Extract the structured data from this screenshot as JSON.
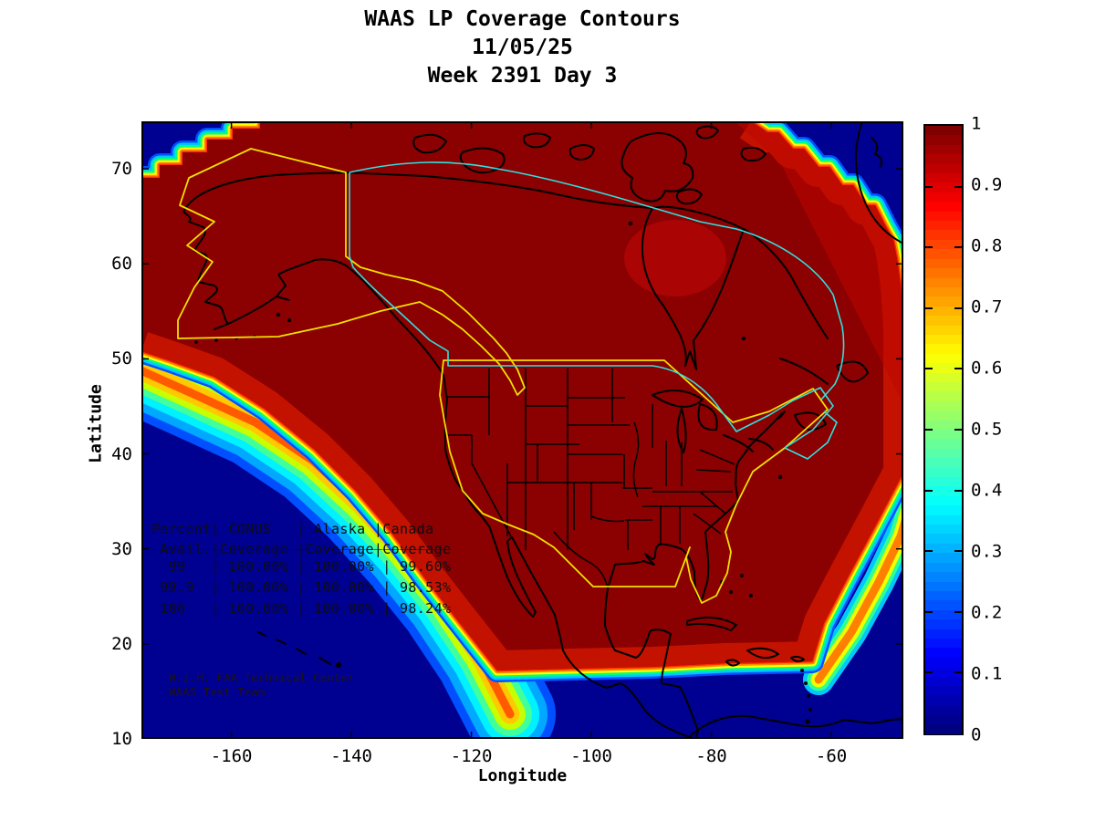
{
  "title": {
    "line1": "WAAS LP Coverage Contours",
    "line2": "11/05/25",
    "line3": "Week 2391 Day 3"
  },
  "axes": {
    "xlabel": "Longitude",
    "ylabel": "Latitude",
    "x_tick_labels": [
      "-160",
      "-140",
      "-120",
      "-100",
      "-80",
      "-60"
    ],
    "y_tick_labels": [
      "70",
      "60",
      "50",
      "40",
      "30",
      "20",
      "10"
    ]
  },
  "colorbar": {
    "tick_labels": [
      "1",
      "0.9",
      "0.8",
      "0.7",
      "0.6",
      "0.5",
      "0.4",
      "0.3",
      "0.2",
      "0.1",
      "0"
    ]
  },
  "stats_table": {
    "lines": [
      "Percent| CONUS   | Alaska |Canada",
      " Avail.|Coverage |Coverage|Coverage",
      "___________________________________",
      "  99   | 100.00% | 100.00% | 99.60%",
      " 99.9  | 100.00% | 100.00% | 98.53%",
      " 100   | 100.00% | 100.00% | 98.24%"
    ]
  },
  "credit": {
    "line1": "W.J.H. FAA Technical Center",
    "line2": "WAAS Test Team"
  },
  "colors": {
    "ocean_blue": "#000091",
    "coverage_dark_red": "#8B0000",
    "coverage_bright_red": "#C41200",
    "conus_alaska_boundary_yellow": "#F0E000",
    "canada_boundary_cyan": "#30E0E0"
  },
  "chart_data": {
    "type": "heatmap",
    "subtype": "filled_contour_coverage_map",
    "title": "WAAS LP Coverage Contours",
    "date": "11/05/25",
    "gps_week_day": "Week 2391 Day 3",
    "xlabel": "Longitude",
    "ylabel": "Latitude",
    "xlim": [
      -175,
      -48
    ],
    "ylim": [
      10,
      75
    ],
    "x_ticks": [
      -160,
      -140,
      -120,
      -100,
      -80,
      -60
    ],
    "y_ticks": [
      10,
      20,
      30,
      40,
      50,
      60,
      70
    ],
    "colorbar": {
      "range": [
        0,
        1
      ],
      "ticks": [
        0,
        0.1,
        0.2,
        0.3,
        0.4,
        0.5,
        0.6,
        0.7,
        0.8,
        0.9,
        1
      ],
      "colormap": "jet",
      "position": "right"
    },
    "grid": false,
    "legend": "none",
    "content_summary": "Coverage fraction near 1 (dark red) over CONUS, Alaska, Canada and surrounding ocean; drops to 0 (dark blue) in NW corner, NE corner (Greenland/North Atlantic), SW Pacific, south of ~17N latitude and SE Atlantic, with rainbow contour transition bands; yellow outlines = CONUS/Alaska coverage boundaries, cyan outline = Canada coverage boundary, black = coastlines and state borders",
    "coverage_table": {
      "columns": [
        "Percent Avail.",
        "CONUS Coverage",
        "Alaska Coverage",
        "Canada Coverage"
      ],
      "rows": [
        [
          "99",
          "100.00%",
          "100.00%",
          "99.60%"
        ],
        [
          "99.9",
          "100.00%",
          "100.00%",
          "98.53%"
        ],
        [
          "100",
          "100.00%",
          "100.00%",
          "98.24%"
        ]
      ]
    }
  }
}
